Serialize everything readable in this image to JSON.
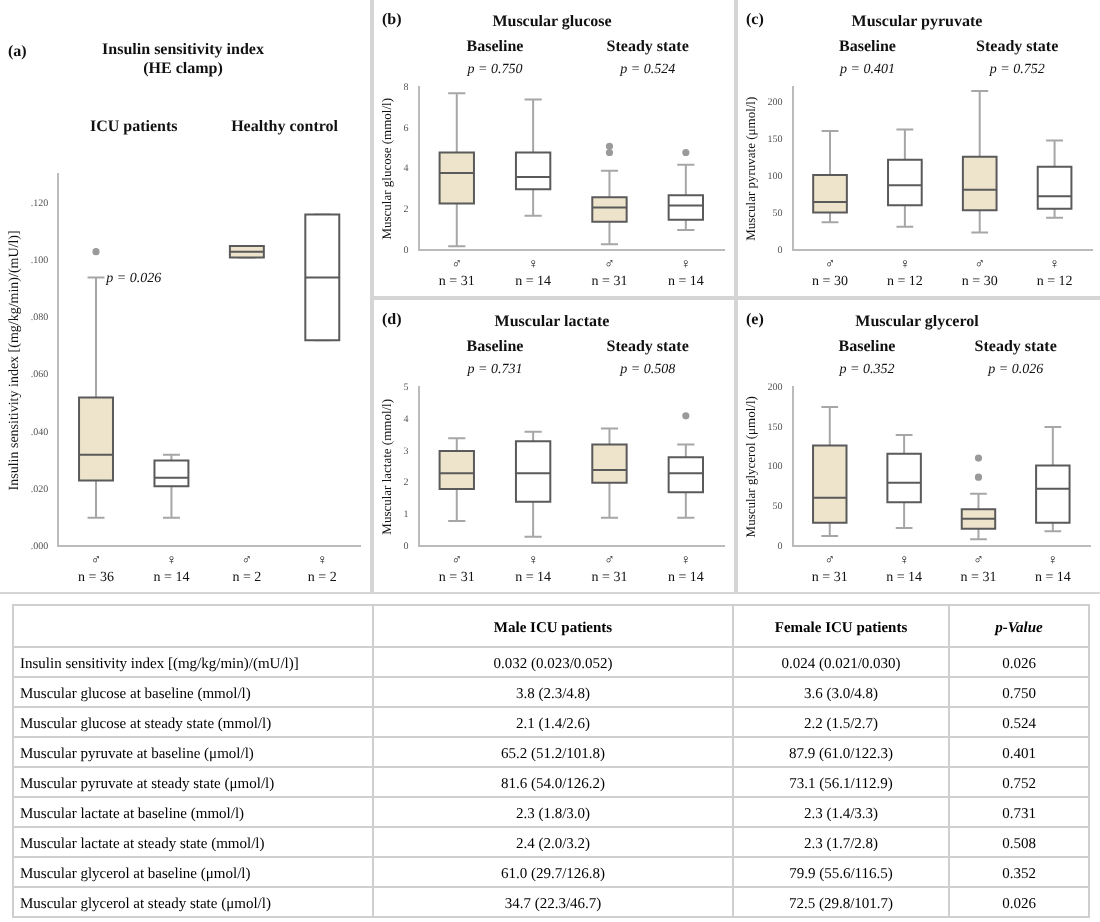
{
  "chart_data": [
    {
      "type": "box",
      "title": "Insulin sensitivity index\n(HE clamp)",
      "ylabel": "Insulin sensitivity index [(mg/kg/min)/(mU/l)]",
      "categories": [
        "♂\nn = 36",
        "♀\nn = 14",
        "♂\nn = 2",
        "♀\nn = 2"
      ],
      "colors": [
        "#eee4cc",
        "#ffffff",
        "#eee4cc",
        "#ffffff"
      ],
      "ylim": [
        0,
        0.13
      ],
      "yticks": [
        {
          "value": 0,
          "label": ".000"
        },
        {
          "value": 0.02,
          "label": ".020"
        },
        {
          "value": 0.04,
          "label": ".040"
        },
        {
          "value": 0.06,
          "label": ".060"
        },
        {
          "value": 0.08,
          "label": ".080"
        },
        {
          "value": 0.1,
          "label": ".100"
        },
        {
          "value": 0.12,
          "label": ".120"
        }
      ],
      "grid": false,
      "annotations": [
        "(a)",
        "ICU patients",
        "Healthy control",
        "p = 0.026"
      ],
      "boxes": [
        {
          "low": 0.01,
          "q1": 0.023,
          "median": 0.032,
          "q3": 0.052,
          "high": 0.094,
          "outliers": [
            0.103
          ]
        },
        {
          "low": 0.01,
          "q1": 0.021,
          "median": 0.024,
          "q3": 0.03,
          "high": 0.032
        },
        {
          "low": 0.101,
          "q1": 0.101,
          "median": 0.103,
          "q3": 0.105,
          "high": 0.105
        },
        {
          "low": 0.072,
          "q1": 0.072,
          "median": 0.094,
          "q3": 0.116,
          "high": 0.116
        }
      ]
    },
    {
      "type": "box",
      "title": "Muscular glucose",
      "ylabel": "Muscular glucose (mmol/l)",
      "categories": [
        "♂\nn = 31",
        "♀\nn = 14",
        "♂\nn = 31",
        "♀\nn = 14"
      ],
      "colors": [
        "#eee4cc",
        "#ffffff",
        "#eee4cc",
        "#ffffff"
      ],
      "ylim": [
        0,
        8
      ],
      "yticks": [
        0,
        2,
        4,
        6,
        8
      ],
      "grid": false,
      "annotations": [
        "(b)",
        "Baseline",
        "Steady state",
        "p = 0.750",
        "p = 0.524"
      ],
      "boxes": [
        {
          "low": 0.2,
          "q1": 2.3,
          "median": 3.8,
          "q3": 4.8,
          "high": 7.7
        },
        {
          "low": 1.7,
          "q1": 3.0,
          "median": 3.6,
          "q3": 4.8,
          "high": 7.4
        },
        {
          "low": 0.3,
          "q1": 1.4,
          "median": 2.1,
          "q3": 2.6,
          "high": 3.9,
          "outliers": [
            4.8,
            5.1
          ]
        },
        {
          "low": 1.0,
          "q1": 1.5,
          "median": 2.2,
          "q3": 2.7,
          "high": 4.2,
          "outliers": [
            4.8
          ]
        }
      ]
    },
    {
      "type": "box",
      "title": "Muscular pyruvate",
      "ylabel": "Muscular pyruvate (μmol/l)",
      "categories": [
        "♂\nn = 30",
        "♀\nn = 12",
        "♂\nn = 30",
        "♀\nn = 12"
      ],
      "colors": [
        "#eee4cc",
        "#ffffff",
        "#eee4cc",
        "#ffffff"
      ],
      "ylim": [
        0,
        220
      ],
      "yticks": [
        0,
        50,
        100,
        150,
        200
      ],
      "grid": false,
      "annotations": [
        "(c)",
        "Baseline",
        "Steady state",
        "p = 0.401",
        "p = 0.752"
      ],
      "boxes": [
        {
          "low": 38,
          "q1": 51.2,
          "median": 65.2,
          "q3": 101.8,
          "high": 161
        },
        {
          "low": 32,
          "q1": 61.0,
          "median": 87.9,
          "q3": 122.3,
          "high": 163
        },
        {
          "low": 24,
          "q1": 54.0,
          "median": 81.6,
          "q3": 126.2,
          "high": 215
        },
        {
          "low": 44,
          "q1": 56.1,
          "median": 73.1,
          "q3": 112.9,
          "high": 148
        }
      ]
    },
    {
      "type": "box",
      "title": "Muscular lactate",
      "ylabel": "Muscular lactate (mmol/l)",
      "categories": [
        "♂\nn = 31",
        "♀\nn = 14",
        "♂\nn = 31",
        "♀\nn = 14"
      ],
      "colors": [
        "#eee4cc",
        "#ffffff",
        "#eee4cc",
        "#ffffff"
      ],
      "ylim": [
        0,
        5
      ],
      "yticks": [
        0,
        1,
        2,
        3,
        4,
        5
      ],
      "grid": false,
      "annotations": [
        "(d)",
        "Baseline",
        "Steady state",
        "p = 0.731",
        "p = 0.508"
      ],
      "boxes": [
        {
          "low": 0.8,
          "q1": 1.8,
          "median": 2.3,
          "q3": 3.0,
          "high": 3.4
        },
        {
          "low": 0.3,
          "q1": 1.4,
          "median": 2.3,
          "q3": 3.3,
          "high": 3.6
        },
        {
          "low": 0.9,
          "q1": 2.0,
          "median": 2.4,
          "q3": 3.2,
          "high": 3.7
        },
        {
          "low": 0.9,
          "q1": 1.7,
          "median": 2.3,
          "q3": 2.8,
          "high": 3.2,
          "outliers": [
            4.1
          ]
        }
      ]
    },
    {
      "type": "box",
      "title": "Muscular glycerol",
      "ylabel": "Muscular glycerol (μmol/l)",
      "categories": [
        "♂\nn = 31",
        "♀\nn = 14",
        "♂\nn = 31",
        "♀\nn = 14"
      ],
      "colors": [
        "#eee4cc",
        "#ffffff",
        "#eee4cc",
        "#ffffff"
      ],
      "ylim": [
        0,
        200
      ],
      "yticks": [
        0,
        50,
        100,
        150,
        200
      ],
      "grid": false,
      "annotations": [
        "(e)",
        "Baseline",
        "Steady state",
        "p = 0.352",
        "p = 0.026"
      ],
      "boxes": [
        {
          "low": 13,
          "q1": 29.7,
          "median": 61.0,
          "q3": 126.8,
          "high": 175
        },
        {
          "low": 23,
          "q1": 55.6,
          "median": 79.9,
          "q3": 116.5,
          "high": 140
        },
        {
          "low": 9,
          "q1": 22.3,
          "median": 34.7,
          "q3": 46.7,
          "high": 66,
          "outliers": [
            87,
            111
          ]
        },
        {
          "low": 19,
          "q1": 29.8,
          "median": 72.5,
          "q3": 101.7,
          "high": 150
        }
      ]
    },
    {
      "type": "other",
      "categories": [
        "Male ICU patients",
        "Female ICU patients",
        "p-Value"
      ],
      "y_categories": [
        "Insulin sensitivity index [(mg/kg/min)/(mU/l)]",
        "Muscular glucose at baseline (mmol/l)",
        "Muscular glucose at steady state (mmol/l)",
        "Muscular pyruvate at baseline (μmol/l)",
        "Muscular pyruvate at steady state (μmol/l)",
        "Muscular lactate at baseline (mmol/l)",
        "Muscular lactate at steady state (mmol/l)",
        "Muscular glycerol at baseline (μmol/l)",
        "Muscular glycerol at steady state (μmol/l)"
      ],
      "cell_labels": [
        [
          "0.032 (0.023/0.052)",
          "0.024 (0.021/0.030)",
          "0.026"
        ],
        [
          "3.8 (2.3/4.8)",
          "3.6 (3.0/4.8)",
          "0.750"
        ],
        [
          "2.1 (1.4/2.6)",
          "2.2 (1.5/2.7)",
          "0.524"
        ],
        [
          "65.2 (51.2/101.8)",
          "87.9 (61.0/122.3)",
          "0.401"
        ],
        [
          "81.6 (54.0/126.2)",
          "73.1 (56.1/112.9)",
          "0.752"
        ],
        [
          "2.3 (1.8/3.0)",
          "2.3 (1.4/3.3)",
          "0.731"
        ],
        [
          "2.4 (2.0/3.2)",
          "2.3 (1.7/2.8)",
          "0.508"
        ],
        [
          "61.0 (29.7/126.8)",
          "79.9 (55.6/116.5)",
          "0.352"
        ],
        [
          "34.7 (22.3/46.7)",
          "72.5 (29.8/101.7)",
          "0.026"
        ]
      ]
    }
  ]
}
